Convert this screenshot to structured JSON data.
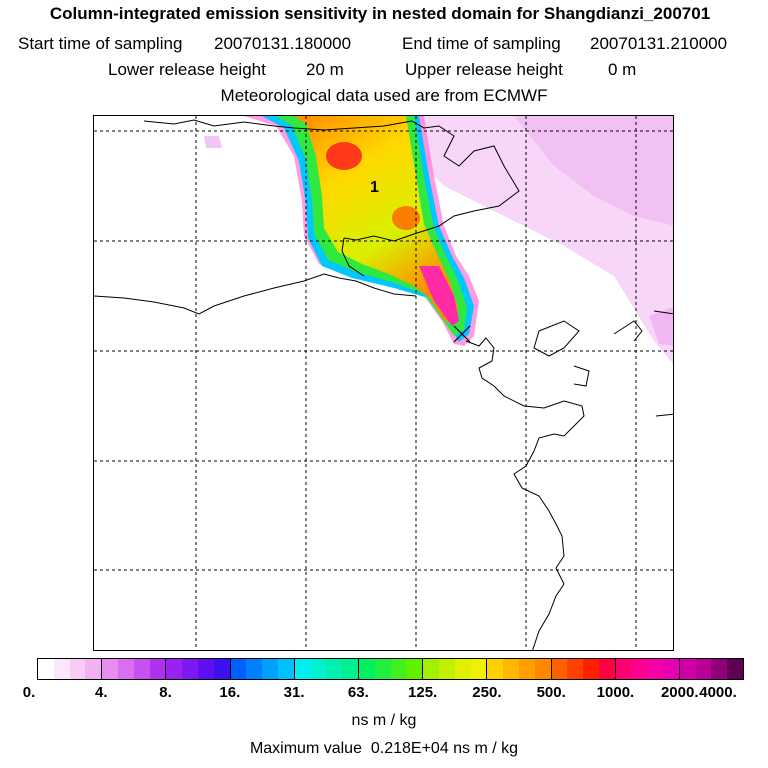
{
  "header": {
    "title": "Column-integrated emission sensitivity in nested domain for Shangdianzi_200701",
    "start_label": "Start time of sampling",
    "start_value": "20070131.180000",
    "end_label": "End time of sampling",
    "end_value": "20070131.210000",
    "lower_label": "Lower release height",
    "lower_value": "20 m",
    "upper_label": "Upper release height",
    "upper_value": "0 m",
    "met_line": "Meteorological data used are from ECMWF"
  },
  "map": {
    "release_label": "1",
    "colors": {
      "light_pink": "#f3c4f6",
      "magenta": "#ff2aa6",
      "red": "#ff2020",
      "orange": "#ff8a00",
      "yellow": "#ffd800",
      "yellow_green": "#d8f000",
      "green": "#30e840",
      "cyan": "#00e8e8",
      "blue": "#00a0ff"
    }
  },
  "colorbar": {
    "segments": [
      [
        "#ffffff",
        "#fce6fb",
        "#f7ccf6",
        "#f2b2f1"
      ],
      [
        "#e78ef0",
        "#d96ef0",
        "#c650f0",
        "#b030f0"
      ],
      [
        "#9822f0",
        "#7c18f0",
        "#6010f0",
        "#3c10f0"
      ],
      [
        "#0060ff",
        "#0080ff",
        "#00a0ff",
        "#00c0ff"
      ],
      [
        "#00f0f0",
        "#00f0d0",
        "#00f0b0",
        "#00f090"
      ],
      [
        "#00f060",
        "#20f040",
        "#40f020",
        "#60f000"
      ],
      [
        "#a0f000",
        "#c0f000",
        "#e0f000",
        "#f0f000"
      ],
      [
        "#ffd000",
        "#ffb800",
        "#ffa000",
        "#ff8800"
      ],
      [
        "#ff6000",
        "#ff4000",
        "#ff2000",
        "#ff0040"
      ],
      [
        "#ff0070",
        "#ff0090",
        "#f800a8",
        "#e800b0"
      ],
      [
        "#d000a8",
        "#b80098",
        "#900078",
        "#600050"
      ]
    ],
    "ticks": [
      "0.",
      "4.",
      "8.",
      "16.",
      "31.",
      "63.",
      "125.",
      "250.",
      "500.",
      "1000.",
      "2000.",
      "4000."
    ],
    "unit": "ns m / kg",
    "max_label": "Maximum value",
    "max_value": "0.218E+04 ns m / kg"
  }
}
